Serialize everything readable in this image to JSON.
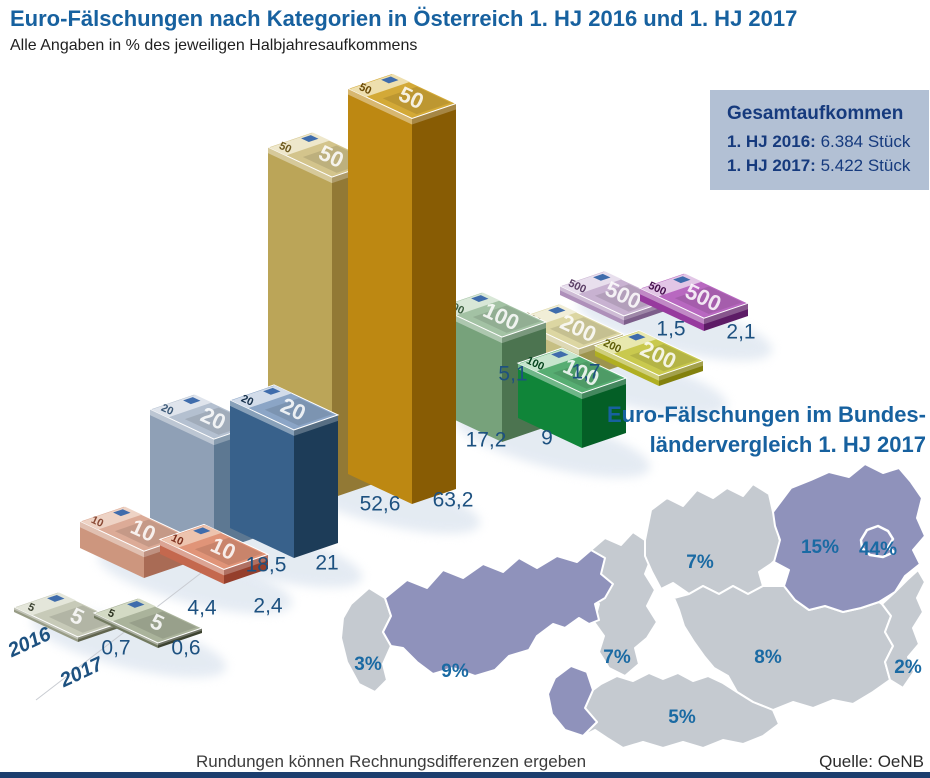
{
  "header": {
    "title": "Euro-Fälschungen nach Kategorien in Österreich 1. HJ 2016 und 1. HJ 2017",
    "subtitle": "Alle Angaben in % des jeweiligen Halbjahresaufkommens"
  },
  "summary_box": {
    "title": "Gesamtaufkommen",
    "lines": [
      {
        "label": "1. HJ 2016:",
        "value": "6.384 Stück"
      },
      {
        "label": "1. HJ 2017:",
        "value": "5.422 Stück"
      }
    ]
  },
  "chart_data": [
    {
      "type": "bar",
      "title": "Euro-Fälschungen nach Kategorien in Österreich 1. HJ 2016 und 1. HJ 2017",
      "unit": "% des jeweiligen Halbjahresaufkommens",
      "categories": [
        "5",
        "10",
        "20",
        "50",
        "100",
        "200",
        "500"
      ],
      "series": [
        {
          "name": "2016",
          "values": [
            0.7,
            4.4,
            18.5,
            52.6,
            17.2,
            5.1,
            1.5
          ]
        },
        {
          "name": "2017",
          "values": [
            0.6,
            2.4,
            21,
            63.2,
            9,
            1.7,
            2.1
          ]
        }
      ],
      "value_labels": [
        [
          "0,7",
          "0,6"
        ],
        [
          "4,4",
          "2,4"
        ],
        [
          "18,5",
          "21"
        ],
        [
          "52,6",
          "63,2"
        ],
        [
          "17,2",
          "9"
        ],
        [
          "5,1",
          "1,7"
        ],
        [
          "1,5",
          "2,1"
        ]
      ],
      "note_styles": {
        "5": [
          {
            "top": "#c7cab8",
            "band": "#e4e6da",
            "left": "#989c86",
            "right": "#61654e",
            "num": "#3f4535"
          },
          {
            "top": "#aab39b",
            "band": "#d3dac4",
            "left": "#737b61",
            "right": "#3d4330",
            "num": "#2e3423"
          }
        ],
        "10": [
          {
            "top": "#dcab97",
            "band": "#eed3c5",
            "left": "#cd967e",
            "right": "#a96b55",
            "num": "#8a4a36"
          },
          {
            "top": "#e09478",
            "band": "#edc3ae",
            "left": "#c4684e",
            "right": "#953f2c",
            "num": "#7c2f1d"
          }
        ],
        "20": [
          {
            "top": "#b4c0d0",
            "band": "#dfe4ec",
            "left": "#8fa0b6",
            "right": "#5d7892",
            "num": "#3d5a78"
          },
          {
            "top": "#8ba5c6",
            "band": "#d2dcea",
            "left": "#38618b",
            "right": "#1d3c58",
            "num": "#16304a"
          }
        ],
        "50": [
          {
            "top": "#d3c48c",
            "band": "#eee7cb",
            "left": "#bba558",
            "right": "#927935",
            "num": "#6e5a20"
          },
          {
            "top": "#d3a937",
            "band": "#eedfae",
            "left": "#bd8812",
            "right": "#885c04",
            "num": "#6b4a06"
          }
        ],
        "100": [
          {
            "top": "#a3c2a4",
            "band": "#d8e7d7",
            "left": "#77a27b",
            "right": "#4c7450",
            "num": "#3a5c3e"
          },
          {
            "top": "#57ad72",
            "band": "#c6e5cd",
            "left": "#108539",
            "right": "#045f26",
            "num": "#07451f"
          }
        ],
        "200": [
          {
            "top": "#dcd6a2",
            "band": "#f1eed7",
            "left": "#c6bf83",
            "right": "#9d944e",
            "num": "#7a7236"
          },
          {
            "top": "#c9c94e",
            "band": "#e8e8ae",
            "left": "#b0af22",
            "right": "#83810d",
            "num": "#5f5e0a"
          }
        ],
        "500": [
          {
            "top": "#c8b2d1",
            "band": "#e8dfed",
            "left": "#ae90ba",
            "right": "#7c5e8a",
            "num": "#5d4168"
          },
          {
            "top": "#b868c0",
            "band": "#e2c6e6",
            "left": "#973a9e",
            "right": "#5d1b66",
            "num": "#47124f"
          }
        ]
      }
    },
    {
      "type": "map",
      "title": "Euro-Fälschungen im Bundesländervergleich 1. HJ 2017",
      "regions": [
        {
          "name": "Vorarlberg",
          "label": "3%",
          "highlight": false
        },
        {
          "name": "Tirol",
          "label": "9%",
          "highlight": true
        },
        {
          "name": "Salzburg",
          "label": "7%",
          "highlight": false
        },
        {
          "name": "Oberösterreich",
          "label": "7%",
          "highlight": false
        },
        {
          "name": "Niederösterreich",
          "label": "15%",
          "highlight": true
        },
        {
          "name": "Wien",
          "label": "44%",
          "highlight": true
        },
        {
          "name": "Steiermark",
          "label": "8%",
          "highlight": false
        },
        {
          "name": "Kärnten",
          "label": "5%",
          "highlight": false
        },
        {
          "name": "Burgenland",
          "label": "2%",
          "highlight": false
        }
      ]
    }
  ],
  "map_section": {
    "title_line1": "Euro-Fälschungen im Bundes-",
    "title_line2": "ländervergleich 1. HJ 2017"
  },
  "footer": {
    "note": "Rundungen können Rechnungsdifferenzen ergeben",
    "source": "Quelle: OeNB"
  },
  "colors": {
    "title_blue": "#17619f",
    "value_label": "#1d5180",
    "map_label": "#1a6aa3",
    "box_bg": "#b2c0d4",
    "box_text": "#163a7d",
    "map_gray": "#c5cad0",
    "map_purple": "#8f92bb",
    "flag_blue": "#3f6cac",
    "shadow": "#d3deeb",
    "bottom_bar": "#1c3e6e"
  }
}
